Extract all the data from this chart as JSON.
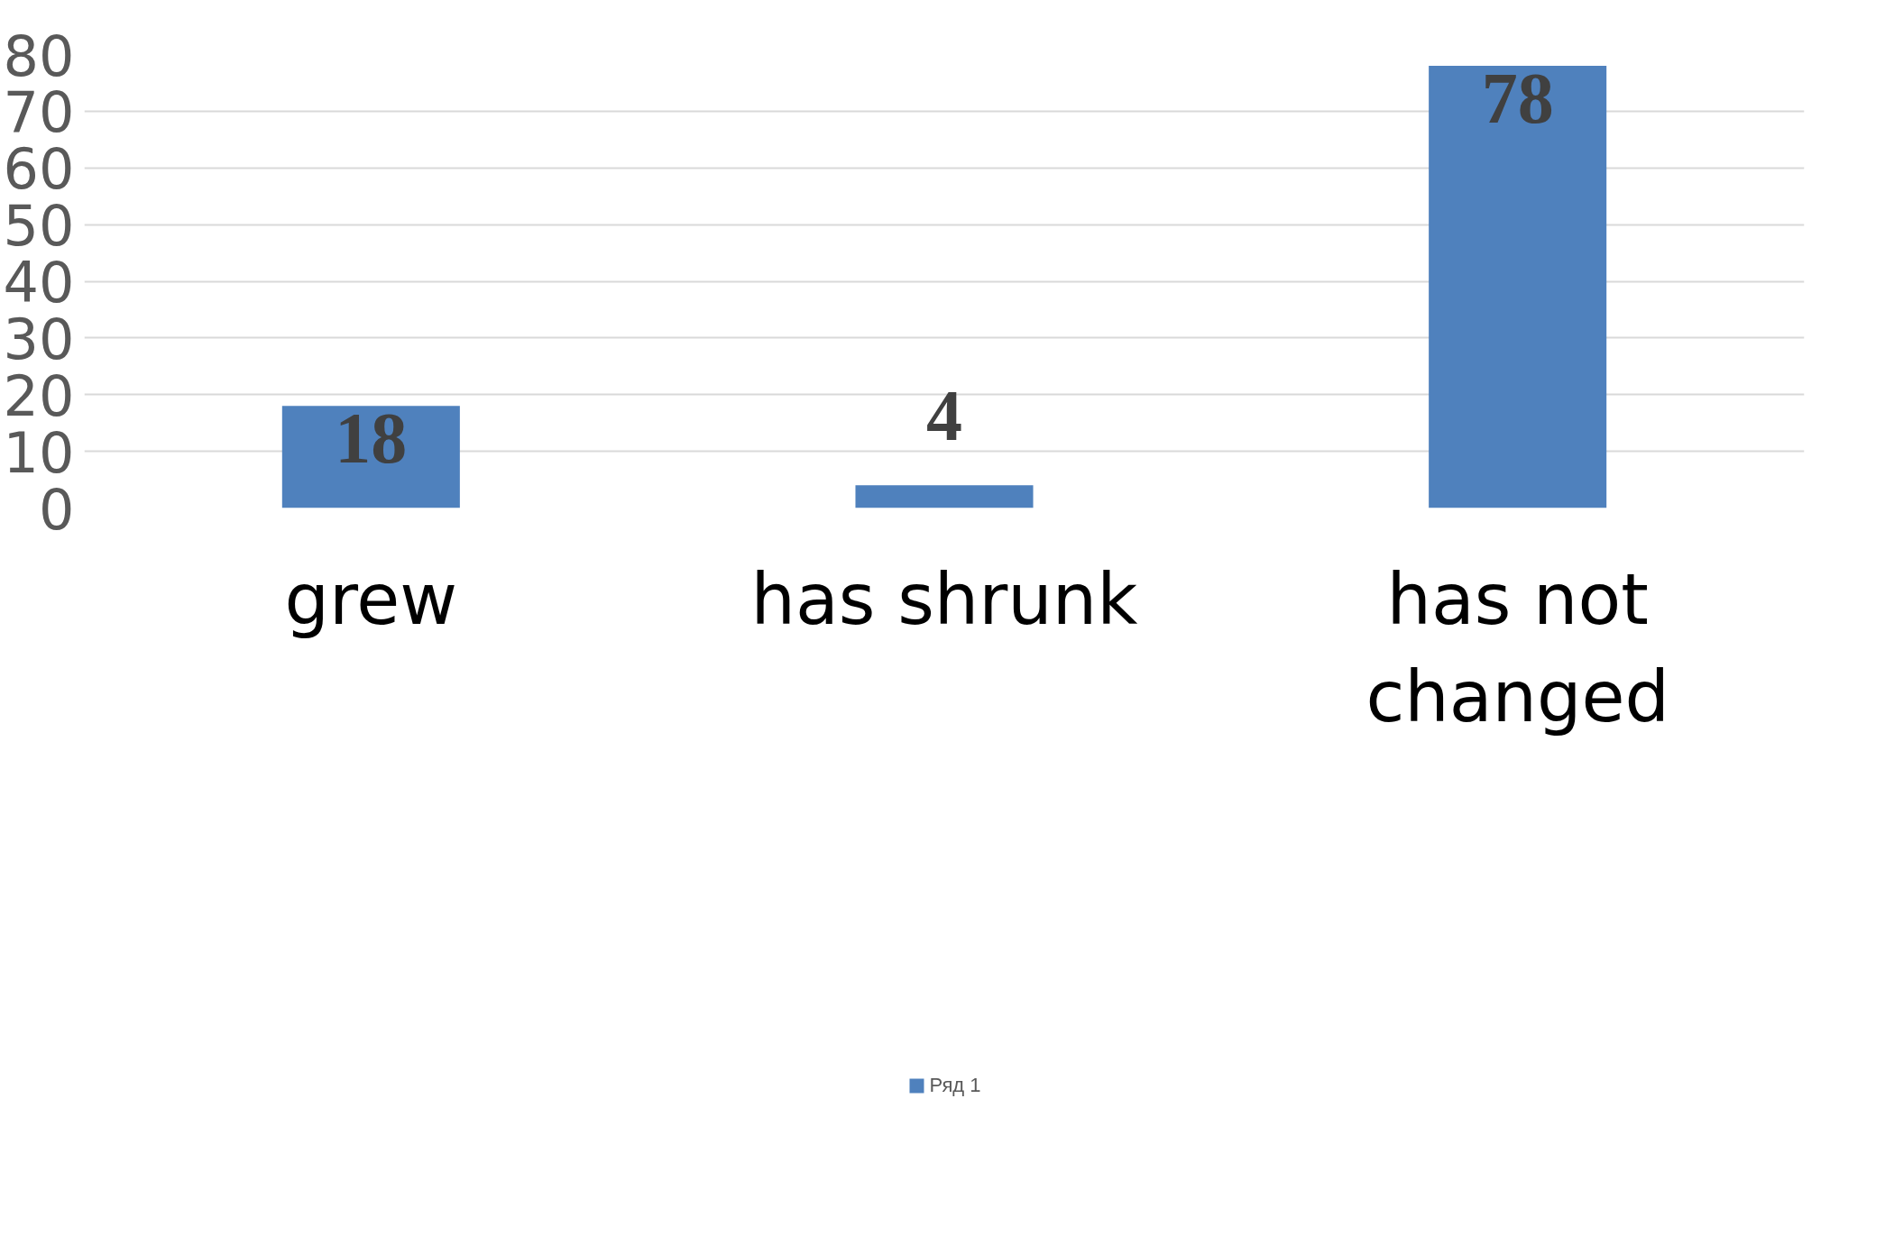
{
  "chart_data": {
    "type": "bar",
    "categories": [
      "grew",
      "has shrunk",
      "has not changed"
    ],
    "series": [
      {
        "name": "Ряд 1",
        "color": "#4f81bd",
        "values": [
          18,
          4,
          78
        ]
      }
    ],
    "ylim": [
      0,
      80
    ],
    "yticks": [
      0,
      10,
      20,
      30,
      40,
      50,
      60,
      70,
      80
    ],
    "grid": "y",
    "data_labels": true,
    "legend": "bottom"
  }
}
